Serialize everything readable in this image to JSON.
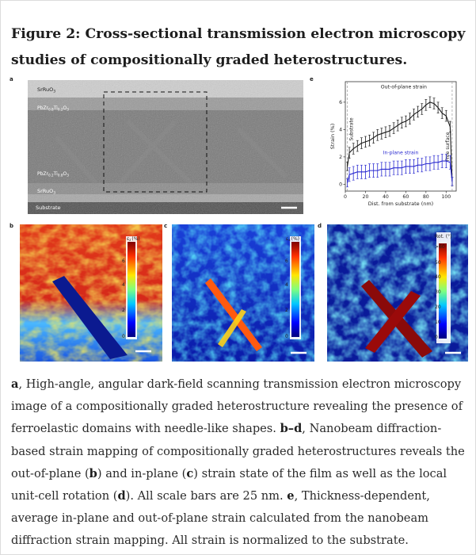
{
  "title": "Figure 2: Cross-sectional transmission electron microscopy studies of compositionally graded heterostructures.",
  "panels": {
    "a": {
      "letter": "a",
      "layers": {
        "top_electrode": "SrRuO",
        "top_electrode_sub": "3",
        "film_top": "PbZr",
        "film_top_sub1": "0.8",
        "film_top_mid": "Ti",
        "film_top_sub2": "0.2",
        "film_top_end": "O",
        "film_top_sub3": "3",
        "film_bottom": "PbZr",
        "film_bottom_sub1": "0.2",
        "film_bottom_mid": "Ti",
        "film_bottom_sub2": "0.8",
        "film_bottom_end": "O",
        "film_bottom_sub3": "3",
        "bottom_electrode": "SrRuO",
        "bottom_electrode_sub": "3",
        "substrate": "Substrate"
      }
    },
    "b": {
      "letter": "b",
      "colorbar_label": "ε",
      "colorbar_sub": "z",
      "colorbar_unit": "(%)",
      "ticks": [
        "6",
        "4",
        "2",
        "0"
      ]
    },
    "c": {
      "letter": "c",
      "colorbar_label": "ε",
      "colorbar_sub": "x",
      "colorbar_unit": "(%)",
      "ticks": [
        "6",
        "4",
        "2",
        "0"
      ]
    },
    "d": {
      "letter": "d",
      "colorbar_label": "Rot. (°)",
      "ticks": [
        ">60",
        "50",
        "40",
        "30",
        "20",
        "10",
        "0"
      ]
    },
    "e": {
      "letter": "e"
    }
  },
  "chart_data": {
    "type": "line",
    "title": "",
    "xlabel": "Dist. from substrate (nm)",
    "ylabel": "Strain (%)",
    "xlim": [
      0,
      110
    ],
    "ylim": [
      -0.5,
      7.5
    ],
    "xticks": [
      0,
      20,
      40,
      60,
      80,
      100
    ],
    "yticks": [
      0,
      2,
      4,
      6
    ],
    "annotations": [
      "Substrate",
      "Free surface"
    ],
    "series": [
      {
        "name": "Out-of-plane strain",
        "color": "#1a1a1a",
        "x": [
          2,
          4,
          8,
          12,
          16,
          20,
          24,
          28,
          32,
          36,
          40,
          44,
          48,
          52,
          56,
          60,
          64,
          68,
          72,
          76,
          80,
          84,
          88,
          92,
          96,
          100,
          104,
          106
        ],
        "y": [
          1.3,
          2.3,
          2.6,
          2.8,
          3.0,
          3.1,
          3.2,
          3.4,
          3.6,
          3.7,
          3.8,
          3.9,
          4.1,
          4.3,
          4.5,
          4.6,
          4.8,
          5.1,
          5.3,
          5.5,
          5.8,
          6.0,
          5.9,
          5.6,
          5.2,
          5.0,
          4.2,
          0.2
        ],
        "err": [
          0.3,
          0.4,
          0.4,
          0.4,
          0.4,
          0.4,
          0.4,
          0.4,
          0.4,
          0.4,
          0.4,
          0.4,
          0.4,
          0.4,
          0.4,
          0.4,
          0.4,
          0.4,
          0.4,
          0.4,
          0.4,
          0.4,
          0.4,
          0.4,
          0.4,
          0.4,
          0.4,
          0.3
        ]
      },
      {
        "name": "In-plane strain",
        "color": "#2a2ad0",
        "x": [
          2,
          4,
          8,
          12,
          16,
          20,
          24,
          28,
          32,
          36,
          40,
          44,
          48,
          52,
          56,
          60,
          64,
          68,
          72,
          76,
          80,
          84,
          88,
          92,
          96,
          100,
          104,
          106
        ],
        "y": [
          0.1,
          0.7,
          0.8,
          0.9,
          0.9,
          0.9,
          1.0,
          1.0,
          1.0,
          1.1,
          1.1,
          1.1,
          1.2,
          1.2,
          1.2,
          1.3,
          1.3,
          1.3,
          1.4,
          1.4,
          1.5,
          1.5,
          1.6,
          1.6,
          1.7,
          1.7,
          1.6,
          0.2
        ],
        "err": [
          0.3,
          0.5,
          0.5,
          0.5,
          0.5,
          0.5,
          0.5,
          0.5,
          0.5,
          0.5,
          0.5,
          0.5,
          0.5,
          0.5,
          0.5,
          0.5,
          0.5,
          0.5,
          0.5,
          0.5,
          0.5,
          0.5,
          0.5,
          0.5,
          0.5,
          0.5,
          0.5,
          0.3
        ]
      }
    ],
    "legend": "inline-labels"
  },
  "caption": {
    "a_letter": "a",
    "a_text": ", High-angle, angular dark-field scanning transmission electron microscopy image of a compositionally graded heterostructure revealing the presence of ferroelastic domains with needle-like shapes. ",
    "bd_letter": "b–d",
    "bd_text1": ", Nanobeam diffraction-based strain mapping of compositionally graded heterostructures reveals the out-of-plane (",
    "b_letter": "b",
    "bd_text2": ") and in-plane (",
    "c_letter": "c",
    "bd_text3": ") strain state of the film as well as the local unit-cell rotation (",
    "d_letter": "d",
    "bd_text4": "). All scale bars are 25 nm. ",
    "e_letter": "e",
    "e_text": ", Thickness-dependent, average in-plane and out-of-plane strain calculated from the nanobeam diffraction strain mapping. All strain is normalized to the substrate."
  },
  "colors": {
    "heat_red": "#c8141c",
    "heat_blue": "#0a1aa8",
    "haadf_gray": "#6e6e6e",
    "out_of_plane": "#1a1a1a",
    "in_plane": "#2a2ad0"
  }
}
